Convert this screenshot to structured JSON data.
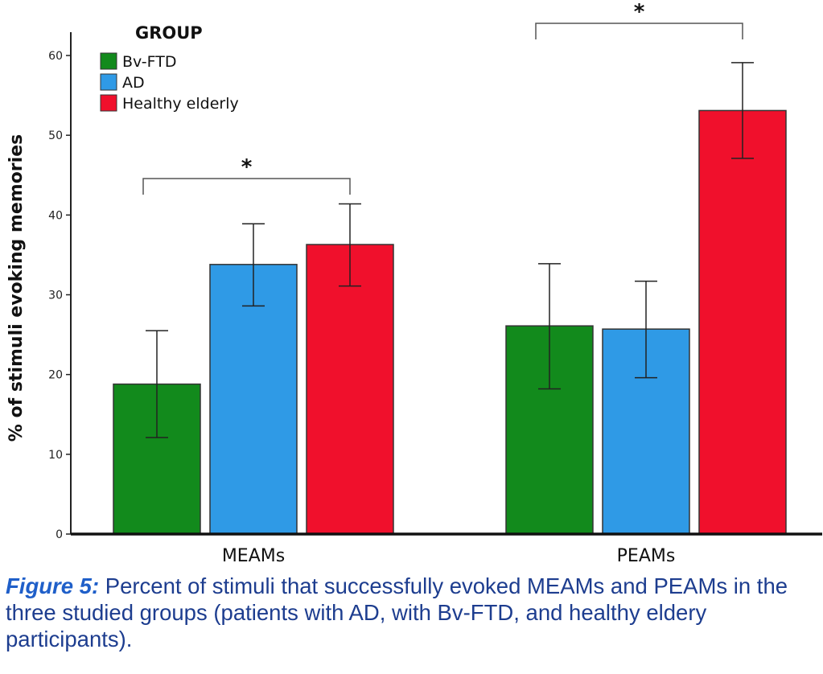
{
  "chart_data": {
    "type": "bar",
    "categories": [
      "MEAMs",
      "PEAMs"
    ],
    "series": [
      {
        "name": "Bv-FTD",
        "color": "#128a1c",
        "values": [
          18.8,
          26.1
        ],
        "error_low": [
          12.1,
          18.2
        ],
        "error_high": [
          25.5,
          33.9
        ]
      },
      {
        "name": "AD",
        "color": "#2f9ae6",
        "values": [
          33.8,
          25.7
        ],
        "error_low": [
          28.6,
          19.6
        ],
        "error_high": [
          38.9,
          31.7
        ]
      },
      {
        "name": "Healthy elderly",
        "color": "#f0102c",
        "values": [
          36.3,
          53.1
        ],
        "error_low": [
          31.1,
          47.1
        ],
        "error_high": [
          41.4,
          59.1
        ]
      }
    ],
    "ylabel": "% of stimuli evoking memories",
    "xlabel": "",
    "ylim": [
      0,
      60
    ],
    "yticks": [
      0,
      10,
      20,
      30,
      40,
      50,
      60
    ],
    "legend": {
      "title": "GROUP",
      "position": "top-left"
    },
    "grid": false,
    "annotations": [
      {
        "text": "*",
        "category": "MEAMs",
        "from_series": "Bv-FTD",
        "to_series": "Healthy elderly"
      },
      {
        "text": "*",
        "category": "PEAMs",
        "from_series": "Bv-FTD",
        "to_series": "Healthy elderly"
      }
    ]
  },
  "caption": {
    "label": "Figure 5:",
    "text": " Percent of stimuli that successfully evoked MEAMs and PEAMs in the three studied groups (patients with AD, with Bv-FTD, and healthy eldery participants)."
  }
}
